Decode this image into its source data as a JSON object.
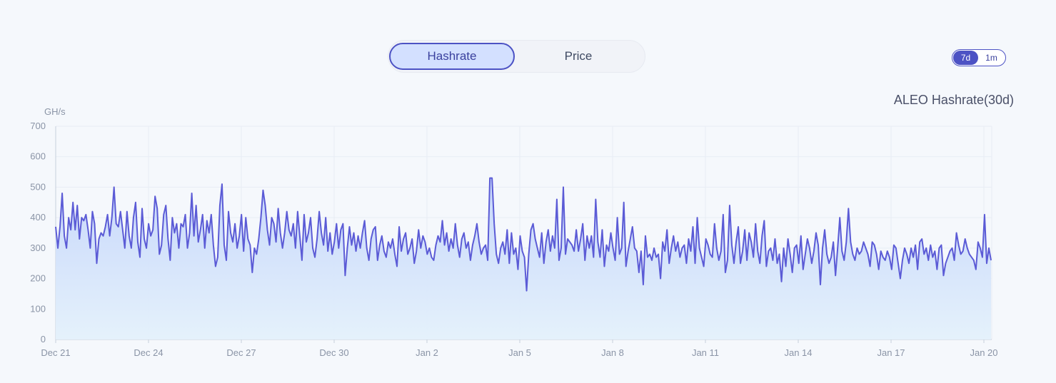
{
  "tabs": [
    {
      "label": "Hashrate",
      "active": true
    },
    {
      "label": "Price",
      "active": false
    }
  ],
  "range": [
    {
      "label": "7d",
      "active": true
    },
    {
      "label": "1m",
      "active": false
    }
  ],
  "colors": {
    "line": "#5b5bd6",
    "fill_top": "#c4d5fb",
    "fill_bottom": "#e4f1fb",
    "accent": "#4c52c4"
  },
  "chart_data": {
    "type": "area",
    "title": "ALEO Hashrate(30d)",
    "ylabel": "GH/s",
    "xlabel": "",
    "ylim": [
      0,
      700
    ],
    "yticks": [
      0,
      100,
      200,
      300,
      400,
      500,
      600,
      700
    ],
    "xticks": [
      "Dec 21",
      "Dec 24",
      "Dec 27",
      "Dec 30",
      "Jan 2",
      "Jan 5",
      "Jan 8",
      "Jan 11",
      "Jan 14",
      "Jan 17",
      "Jan 20"
    ],
    "x_start": "Dec 21",
    "x_end": "Jan 20",
    "grid": true,
    "series": [
      {
        "values": [
          370,
          300,
          370,
          480,
          340,
          300,
          400,
          360,
          450,
          360,
          440,
          330,
          400,
          390,
          410,
          360,
          300,
          420,
          380,
          250,
          330,
          350,
          340,
          370,
          410,
          340,
          400,
          500,
          380,
          370,
          420,
          360,
          300,
          420,
          340,
          300,
          400,
          450,
          320,
          270,
          430,
          330,
          300,
          380,
          340,
          360,
          470,
          430,
          280,
          310,
          410,
          440,
          330,
          260,
          400,
          350,
          380,
          300,
          380,
          370,
          410,
          300,
          350,
          480,
          340,
          440,
          320,
          360,
          410,
          300,
          390,
          350,
          410,
          310,
          240,
          270,
          440,
          510,
          310,
          260,
          420,
          350,
          320,
          380,
          300,
          340,
          410,
          290,
          400,
          330,
          310,
          220,
          300,
          280,
          330,
          400,
          490,
          440,
          360,
          310,
          400,
          380,
          320,
          430,
          350,
          300,
          350,
          420,
          360,
          340,
          380,
          300,
          420,
          340,
          260,
          410,
          320,
          350,
          400,
          300,
          270,
          330,
          420,
          350,
          310,
          400,
          290,
          350,
          280,
          320,
          380,
          300,
          360,
          380,
          210,
          300,
          370,
          310,
          350,
          290,
          340,
          300,
          350,
          390,
          300,
          260,
          330,
          360,
          370,
          260,
          310,
          340,
          290,
          270,
          320,
          300,
          330,
          280,
          240,
          370,
          290,
          330,
          350,
          280,
          300,
          330,
          250,
          290,
          360,
          300,
          340,
          320,
          280,
          300,
          270,
          260,
          310,
          340,
          320,
          390,
          310,
          350,
          290,
          330,
          300,
          380,
          310,
          270,
          330,
          350,
          300,
          320,
          260,
          310,
          340,
          380,
          320,
          280,
          300,
          310,
          260,
          530,
          530,
          380,
          280,
          250,
          300,
          320,
          280,
          360,
          250,
          350,
          280,
          300,
          230,
          340,
          290,
          270,
          160,
          280,
          360,
          380,
          330,
          300,
          270,
          350,
          250,
          320,
          360,
          290,
          340,
          300,
          460,
          260,
          300,
          500,
          280,
          330,
          320,
          310,
          290,
          360,
          290,
          330,
          380,
          260,
          340,
          300,
          340,
          270,
          460,
          320,
          270,
          360,
          240,
          310,
          290,
          350,
          300,
          260,
          400,
          280,
          300,
          450,
          240,
          290,
          330,
          370,
          300,
          290,
          220,
          290,
          180,
          340,
          270,
          280,
          260,
          300,
          270,
          280,
          200,
          320,
          290,
          360,
          250,
          300,
          340,
          290,
          320,
          270,
          300,
          310,
          250,
          330,
          290,
          370,
          250,
          400,
          300,
          270,
          240,
          330,
          310,
          280,
          270,
          380,
          300,
          260,
          290,
          410,
          220,
          260,
          440,
          310,
          250,
          320,
          370,
          250,
          290,
          360,
          260,
          350,
          320,
          270,
          380,
          290,
          250,
          340,
          390,
          240,
          290,
          300,
          260,
          330,
          250,
          280,
          190,
          300,
          240,
          330,
          280,
          220,
          300,
          310,
          250,
          340,
          230,
          280,
          330,
          300,
          250,
          290,
          350,
          310,
          180,
          300,
          360,
          280,
          250,
          270,
          320,
          210,
          300,
          400,
          290,
          260,
          320,
          430,
          320,
          280,
          260,
          300,
          280,
          290,
          320,
          300,
          280,
          240,
          320,
          310,
          280,
          230,
          290,
          270,
          260,
          290,
          270,
          230,
          310,
          300,
          250,
          200,
          260,
          300,
          280,
          250,
          300,
          270,
          310,
          230,
          320,
          330,
          280,
          300,
          260,
          310,
          270,
          290,
          230,
          300,
          310,
          210,
          250,
          270,
          290,
          300,
          260,
          350,
          310,
          280,
          290,
          330,
          300,
          280,
          270,
          260,
          230,
          320,
          300,
          270,
          410,
          250,
          300,
          260
        ]
      }
    ]
  }
}
